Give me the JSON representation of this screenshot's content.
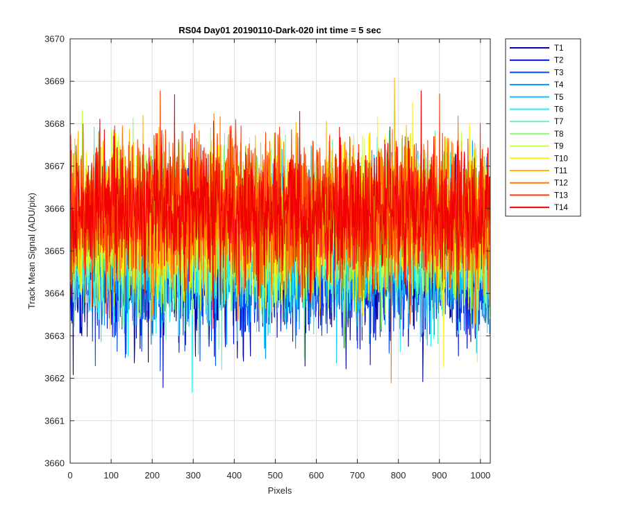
{
  "chart_data": {
    "type": "line",
    "title": "RS04 Day01 20190110-Dark-020 int time = 5 sec",
    "xlabel": "Pixels",
    "ylabel": "Track Mean Signal (ADU/pix)",
    "xlim": [
      0,
      1024
    ],
    "ylim": [
      3660,
      3670
    ],
    "xticks": [
      0,
      100,
      200,
      300,
      400,
      500,
      600,
      700,
      800,
      900,
      1000
    ],
    "yticks": [
      3660,
      3661,
      3662,
      3663,
      3664,
      3665,
      3666,
      3667,
      3668,
      3669,
      3670
    ],
    "grid": true,
    "legend_position": "outside-top-right",
    "n_points_per_series": 1024,
    "series": [
      {
        "name": "T1",
        "color": "#0000A6",
        "mean": 3664.6,
        "noise_sd": 0.85
      },
      {
        "name": "T2",
        "color": "#0014D8",
        "mean": 3664.7,
        "noise_sd": 0.85
      },
      {
        "name": "T3",
        "color": "#0048F4",
        "mean": 3664.8,
        "noise_sd": 0.85
      },
      {
        "name": "T4",
        "color": "#0090FF",
        "mean": 3665.0,
        "noise_sd": 0.85
      },
      {
        "name": "T5",
        "color": "#00C8FF",
        "mean": 3665.1,
        "noise_sd": 0.85
      },
      {
        "name": "T6",
        "color": "#1EF2F0",
        "mean": 3665.2,
        "noise_sd": 0.85
      },
      {
        "name": "T7",
        "color": "#66F0B8",
        "mean": 3665.3,
        "noise_sd": 0.85
      },
      {
        "name": "T8",
        "color": "#8CFF70",
        "mean": 3665.5,
        "noise_sd": 0.85
      },
      {
        "name": "T9",
        "color": "#C8FF40",
        "mean": 3665.6,
        "noise_sd": 0.85
      },
      {
        "name": "T10",
        "color": "#FFF200",
        "mean": 3665.7,
        "noise_sd": 0.85
      },
      {
        "name": "T11",
        "color": "#FFB800",
        "mean": 3665.8,
        "noise_sd": 0.85
      },
      {
        "name": "T12",
        "color": "#FF7A00",
        "mean": 3665.9,
        "noise_sd": 0.85
      },
      {
        "name": "T13",
        "color": "#FF3C00",
        "mean": 3666.0,
        "noise_sd": 0.85
      },
      {
        "name": "T14",
        "color": "#F00000",
        "mean": 3665.9,
        "noise_sd": 0.8
      }
    ]
  }
}
